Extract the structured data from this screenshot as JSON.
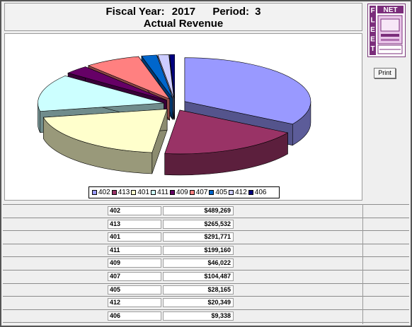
{
  "header": {
    "fiscal_year_label": "Fiscal Year:",
    "fiscal_year": "2017",
    "period_label": "Period:",
    "period": "3",
    "subtitle": "Actual Revenue"
  },
  "logo": {
    "letters_vertical": "FLEET",
    "letters_horizontal": "NET"
  },
  "print_label": "Print",
  "colors": {
    "402": "#9999ff",
    "413": "#993366",
    "401": "#ffffcc",
    "411": "#ccffff",
    "409": "#660066",
    "407": "#ff8080",
    "405": "#0066cc",
    "412": "#ccccff",
    "406": "#000080"
  },
  "chart_data": {
    "type": "pie",
    "style": "3d-exploded",
    "categories": [
      "402",
      "413",
      "401",
      "411",
      "409",
      "407",
      "405",
      "412",
      "406"
    ],
    "values": [
      489269,
      265532,
      291771,
      199160,
      46022,
      104487,
      28165,
      20349,
      9338
    ],
    "legend_position": "bottom"
  },
  "table": {
    "rows": [
      {
        "code": "402",
        "amount": "$489,269"
      },
      {
        "code": "413",
        "amount": "$265,532"
      },
      {
        "code": "401",
        "amount": "$291,771"
      },
      {
        "code": "411",
        "amount": "$199,160"
      },
      {
        "code": "409",
        "amount": "$46,022"
      },
      {
        "code": "407",
        "amount": "$104,487"
      },
      {
        "code": "405",
        "amount": "$28,165"
      },
      {
        "code": "412",
        "amount": "$20,349"
      },
      {
        "code": "406",
        "amount": "$9,338"
      }
    ]
  }
}
